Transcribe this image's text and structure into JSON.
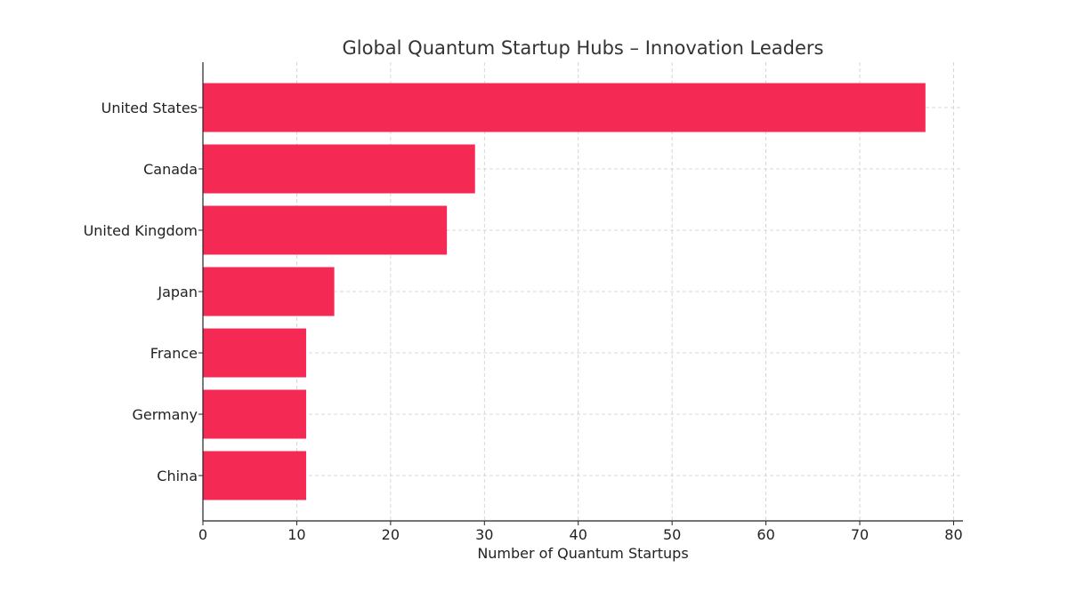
{
  "chart_data": {
    "type": "bar",
    "orientation": "horizontal",
    "title": "Global Quantum Startup Hubs – Innovation Leaders",
    "xlabel": "Number of Quantum Startups",
    "ylabel": "",
    "categories": [
      "United States",
      "Canada",
      "United Kingdom",
      "Japan",
      "France",
      "Germany",
      "China"
    ],
    "values": [
      77,
      29,
      26,
      14,
      11,
      11,
      11
    ],
    "xlim": [
      0,
      81
    ],
    "xticks": [
      0,
      10,
      20,
      30,
      40,
      50,
      60,
      70,
      80
    ],
    "grid": true,
    "bar_color": "#F52A54"
  }
}
